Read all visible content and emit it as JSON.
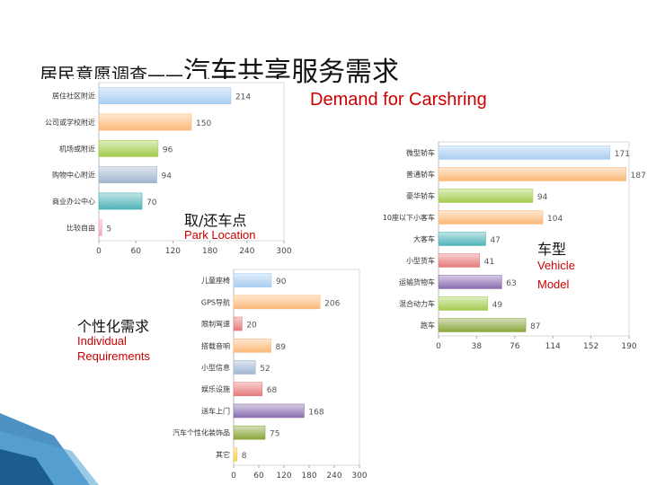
{
  "header": {
    "title_small": "居民意愿调查——",
    "title_big": "汽车共享服务需求",
    "subtitle_en": "Demand for Carshring"
  },
  "captions": {
    "location_cn": "取/还车点",
    "location_en": "Park Location",
    "vehicle_cn": "车型",
    "vehicle_en_1": "Vehicle",
    "vehicle_en_2": "Model",
    "individual_cn": "个性化需求",
    "individual_en_1": "Individual",
    "individual_en_2": "Requirements"
  },
  "colors": {
    "blue": "#a9cdf2",
    "orange": "#fbb97a",
    "lime": "#a3cc4c",
    "steel": "#a0b6cf",
    "teal": "#4fb3b8",
    "red": "#e67a7a",
    "purple": "#8a6db0",
    "olive": "#8aa63c",
    "yellow": "#f2d24b",
    "pink": "#f0a8b8"
  },
  "chart_data": [
    {
      "type": "bar",
      "orientation": "horizontal",
      "categories": [
        "居住社区附近",
        "公司或学校附近",
        "机场或附近",
        "购物中心附近",
        "商业办公中心",
        "比较自由"
      ],
      "values": [
        214,
        150,
        96,
        94,
        70,
        5
      ],
      "value_labels": [
        "214",
        "150",
        "96",
        "94",
        "70",
        "5"
      ],
      "xlim": [
        0,
        300
      ],
      "xticks": [
        "0",
        "60",
        "120",
        "180",
        "240",
        "300"
      ],
      "colors": [
        "blue",
        "orange",
        "lime",
        "steel",
        "teal",
        "pink"
      ]
    },
    {
      "type": "bar",
      "orientation": "horizontal",
      "categories": [
        "微型轿车",
        "普通轿车",
        "豪华轿车",
        "10座以下小客车",
        "大客车",
        "小型货车",
        "运输货物车",
        "混合动力车",
        "跑车"
      ],
      "values": [
        171,
        187,
        94,
        104,
        47,
        41,
        63,
        49,
        87
      ],
      "value_labels": [
        "171",
        "187",
        "94",
        "104",
        "47",
        "41",
        "63",
        "49",
        "87"
      ],
      "xlim": [
        0,
        190
      ],
      "xticks": [
        "0",
        "38",
        "76",
        "114",
        "152",
        "190"
      ],
      "colors": [
        "blue",
        "orange",
        "lime",
        "orange",
        "teal",
        "red",
        "purple",
        "lime",
        "olive"
      ]
    },
    {
      "type": "bar",
      "orientation": "horizontal",
      "categories": [
        "儿童座椅",
        "GPS导航",
        "限制驾速",
        "搭载音响",
        "小型信息",
        "娱乐设施",
        "送车上门",
        "汽车个性化装饰品",
        "其它"
      ],
      "values": [
        90,
        206,
        20,
        89,
        52,
        68,
        168,
        75,
        8
      ],
      "value_labels": [
        "90",
        "206",
        "20",
        "89",
        "52",
        "68",
        "168",
        "75",
        "8"
      ],
      "xlim": [
        0,
        300
      ],
      "xticks": [
        "0",
        "60",
        "120",
        "180",
        "240",
        "300"
      ],
      "colors": [
        "blue",
        "orange",
        "red",
        "orange",
        "steel",
        "red",
        "purple",
        "olive",
        "yellow"
      ]
    }
  ]
}
